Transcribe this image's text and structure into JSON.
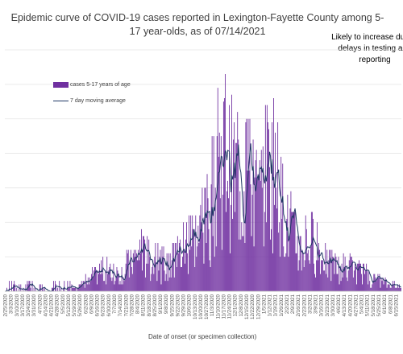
{
  "chart_data": {
    "type": "bar",
    "title": "Epidemic curve of COVID-19 cases reported in Lexington-Fayette County among 5-17 year-olds, as of 07/14/2021",
    "annotation": "Likely to increase due to delays in testing and reporting",
    "xlabel": "Date of onset (or specimen collection)",
    "ylabel": "",
    "ylim": [
      0,
      70
    ],
    "grid": true,
    "legend_position": "top-left",
    "colors": {
      "bars": "#7030A0",
      "line": "#1F3864"
    },
    "series": [
      {
        "name": "cases 5-17 years of age",
        "kind": "bar"
      },
      {
        "name": "7 day moving average",
        "kind": "line"
      }
    ],
    "x_tick_labels": [
      "2/25/2020",
      "3/3/2020",
      "3/10/2020",
      "3/17/2020",
      "3/24/2020",
      "3/31/2020",
      "4/7/2020",
      "4/14/2020",
      "4/21/2020",
      "4/28/2020",
      "5/5/2020",
      "5/12/2020",
      "5/19/2020",
      "5/26/2020",
      "6/2/2020",
      "6/9/2020",
      "6/16/2020",
      "6/23/2020",
      "6/30/2020",
      "7/7/2020",
      "7/14/2020",
      "7/21/2020",
      "7/28/2020",
      "8/4/2020",
      "8/11/2020",
      "8/18/2020",
      "8/25/2020",
      "9/1/2020",
      "9/8/2020",
      "9/15/2020",
      "9/22/2020",
      "9/29/2020",
      "10/6/2020",
      "10/13/2020",
      "10/20/2020",
      "10/27/2020",
      "11/3/2020",
      "11/10/2020",
      "11/17/2020",
      "11/24/2020",
      "12/1/2020",
      "12/8/2020",
      "12/15/2020",
      "12/22/2020",
      "12/29/2020",
      "1/5/2021",
      "1/12/2021",
      "1/19/2021",
      "1/26/2021",
      "2/2/2021",
      "2/9/2021",
      "2/16/2021",
      "2/23/2021",
      "3/2/2021",
      "3/9/2021",
      "3/16/2021",
      "3/23/2021",
      "3/30/2021",
      "4/6/2021",
      "4/13/2021",
      "4/20/2021",
      "4/27/2021",
      "5/4/2021",
      "5/11/2021",
      "5/18/2021",
      "5/25/2021",
      "6/1/2021",
      "6/8/2021",
      "6/15/2021"
    ],
    "weekly_avg_values": [
      0.2,
      0.3,
      0.4,
      0.3,
      0.5,
      0.4,
      0.5,
      0.3,
      0.4,
      0.5,
      0.5,
      0.7,
      1.2,
      1.5,
      2.5,
      4.0,
      5.0,
      5.5,
      4.5,
      4.0,
      5.0,
      6.5,
      8.5,
      10.0,
      9.0,
      8.0,
      7.5,
      7.0,
      6.0,
      7.5,
      10.0,
      11.0,
      12.0,
      14.0,
      16.5,
      19.0,
      25.0,
      33.0,
      37.0,
      31.0,
      29.0,
      27.0,
      28.0,
      24.5,
      23.0,
      30.0,
      31.0,
      27.0,
      22.0,
      16.0,
      13.0,
      11.0,
      12.0,
      13.0,
      11.0,
      8.0,
      6.5,
      6.0,
      6.0,
      5.5,
      6.0,
      5.0,
      4.5,
      3.5,
      3.0,
      2.5,
      2.0,
      1.5,
      1.0
    ]
  }
}
